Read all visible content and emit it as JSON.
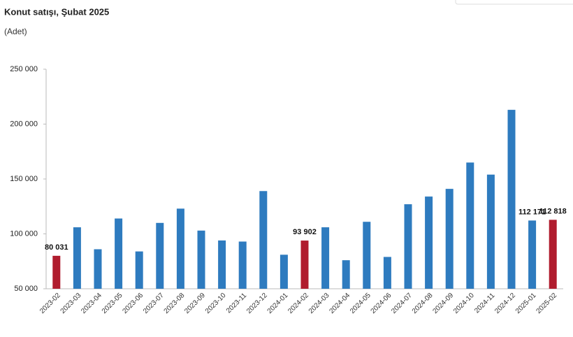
{
  "chart_data": {
    "type": "bar",
    "title": "Konut satışı, Şubat 2025",
    "subtitle": "(Adet)",
    "categories": [
      "2023-02",
      "2023-03",
      "2023-04",
      "2023-05",
      "2023-06",
      "2023-07",
      "2023-08",
      "2023-09",
      "2023-10",
      "2023-11",
      "2023-12",
      "2024-01",
      "2024-02",
      "2024-03",
      "2024-04",
      "2024-05",
      "2024-06",
      "2024-07",
      "2024-08",
      "2024-09",
      "2024-10",
      "2024-11",
      "2024-12",
      "2025-01",
      "2025-02"
    ],
    "values": [
      80031,
      106000,
      86000,
      114000,
      84000,
      110000,
      123000,
      103000,
      94000,
      93000,
      139000,
      81000,
      93902,
      106000,
      76000,
      111000,
      79000,
      127000,
      134000,
      141000,
      165000,
      154000,
      213000,
      112171,
      112818
    ],
    "value_labels": [
      "80 031",
      null,
      null,
      null,
      null,
      null,
      null,
      null,
      null,
      null,
      null,
      null,
      "93 902",
      null,
      null,
      null,
      null,
      null,
      null,
      null,
      null,
      null,
      null,
      "112 171",
      "112 818"
    ],
    "colors": [
      "#b01c2e",
      "#2e7bbf",
      "#2e7bbf",
      "#2e7bbf",
      "#2e7bbf",
      "#2e7bbf",
      "#2e7bbf",
      "#2e7bbf",
      "#2e7bbf",
      "#2e7bbf",
      "#2e7bbf",
      "#2e7bbf",
      "#b01c2e",
      "#2e7bbf",
      "#2e7bbf",
      "#2e7bbf",
      "#2e7bbf",
      "#2e7bbf",
      "#2e7bbf",
      "#2e7bbf",
      "#2e7bbf",
      "#2e7bbf",
      "#2e7bbf",
      "#2e7bbf",
      "#b01c2e"
    ],
    "ylim": [
      50000,
      250000
    ],
    "yticks": [
      {
        "value": 50000,
        "label": "50 000"
      },
      {
        "value": 100000,
        "label": "100 000"
      },
      {
        "value": 150000,
        "label": "150 000"
      },
      {
        "value": 200000,
        "label": "200 000"
      },
      {
        "value": 250000,
        "label": "250 000"
      }
    ],
    "grid": false
  }
}
